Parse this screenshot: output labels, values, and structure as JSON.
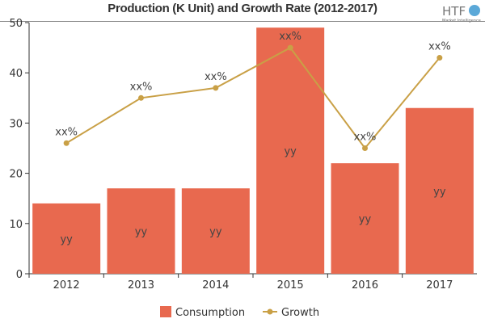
{
  "chart_data": {
    "type": "bar",
    "title": "Production (K Unit) and Growth Rate (2012-2017)",
    "categories": [
      "2012",
      "2013",
      "2014",
      "2015",
      "2016",
      "2017"
    ],
    "series": [
      {
        "name": "Consumption",
        "kind": "bar",
        "values": [
          14,
          17,
          17,
          49,
          22,
          33
        ],
        "data_labels": [
          "yy",
          "yy",
          "yy",
          "yy",
          "yy",
          "yy"
        ],
        "color": "#e8694f"
      },
      {
        "name": "Growth",
        "kind": "line",
        "values": [
          26,
          35,
          37,
          45,
          25,
          43
        ],
        "data_labels": [
          "xx%",
          "xx%",
          "xx%",
          "xx%",
          "xx%",
          "xx%"
        ],
        "color": "#c9a046"
      }
    ],
    "ylim": [
      0,
      50
    ],
    "yticks": [
      0,
      10,
      20,
      30,
      40,
      50
    ],
    "grid": false,
    "legend_position": "bottom"
  },
  "logo": {
    "text": "HTF",
    "subtext": "Market Intelligence"
  }
}
